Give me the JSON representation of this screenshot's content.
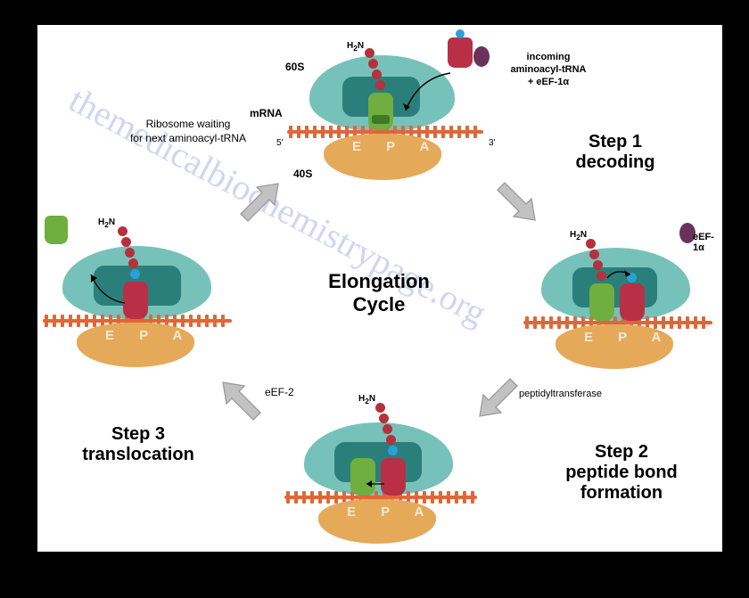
{
  "diagram_type": "infographic",
  "title": "Elongation Cycle",
  "watermark": "themedicalbiochemistrypage.org",
  "background": "#000000",
  "panel_bg": "#ffffff",
  "colors": {
    "ribo60_fill": "#76c2ba",
    "ribo60_dark": "#2b7f7a",
    "ribo40": "#e5a95a",
    "mrna": "#e0663a",
    "trna_green": "#6fae3f",
    "trna_red": "#b93046",
    "dot_red": "#b5313b",
    "dot_blue": "#2aa0d8",
    "eef_purple": "#6a315a",
    "arrow": "#b6b6b6",
    "text": "#000000",
    "epa_text": "#ffffff"
  },
  "steps": [
    {
      "id": "step1",
      "title": "Step 1",
      "subtitle": "decoding",
      "incoming_label": "incoming\naminoacyl-tRNA\n+ eEF-1α"
    },
    {
      "id": "step2",
      "title": "Step 2",
      "subtitle": "peptide bond\nformation",
      "enzyme": "peptidyltransferase"
    },
    {
      "id": "step3",
      "title": "Step 3",
      "subtitle": "translocation",
      "factor": "eEF-2"
    },
    {
      "id": "waiting",
      "note": "Ribosome waiting\nfor next aminoacyl-tRNA"
    }
  ],
  "ribosome_labels": {
    "large": "60S",
    "small": "40S",
    "mrna": "mRNA",
    "five": "5'",
    "three": "3'",
    "epa": "E P A",
    "h2n": "H",
    "h2n_sub": "2",
    "h2n_n": "N"
  },
  "eef1a": "eEF-1α",
  "arrow_style": {
    "fill": "#c2c2c2",
    "stroke": "#9a9a9a",
    "stroke_w": 1.4
  }
}
